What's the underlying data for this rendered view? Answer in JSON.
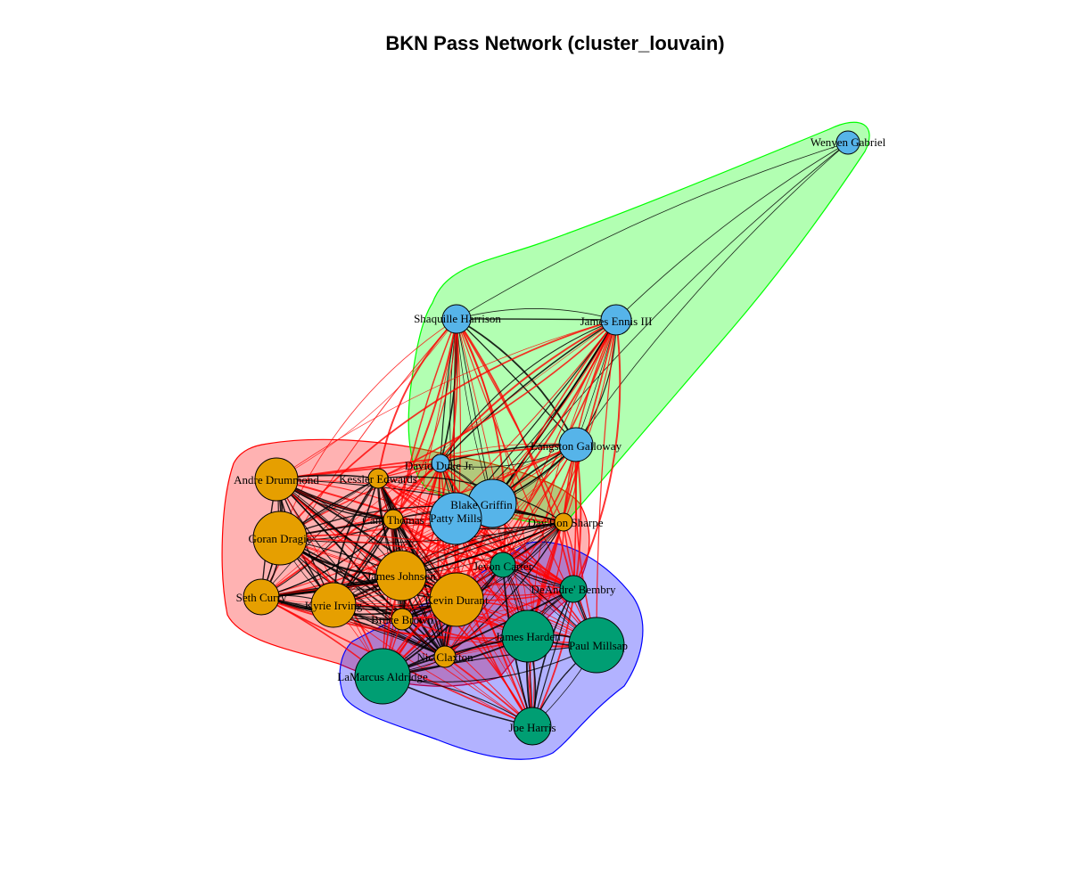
{
  "title": "BKN Pass Network (cluster_louvain)",
  "colors": {
    "community_orange": "#E69F00",
    "community_blue": "#56B4E9",
    "community_green": "#009E73",
    "hull_red": "#FF0000",
    "hull_green": "#00FF00",
    "hull_blue": "#0000FF",
    "edge_within": "#000000",
    "edge_between": "#FF0000"
  },
  "communities": [
    {
      "id": "orange",
      "fill": "#E69F00",
      "hull": "#FF0000",
      "members": [
        "Andre Drummond",
        "Kessler Edwards",
        "Cam Thomas",
        "Goran Dragic",
        "Seth Curry",
        "Kyrie Irving",
        "James Johnson",
        "Kevin Durant",
        "Bruce Brown",
        "Nic Claxton",
        "Day'Ron Sharpe"
      ]
    },
    {
      "id": "blue",
      "fill": "#56B4E9",
      "hull": "#00FF00",
      "members": [
        "Wenyen Gabriel",
        "Shaquille Harrison",
        "James Ennis III",
        "Langston Galloway",
        "David Duke Jr.",
        "Blake Griffin",
        "Patty Mills"
      ]
    },
    {
      "id": "green",
      "fill": "#009E73",
      "hull": "#0000FF",
      "members": [
        "Jevon Carter",
        "DeAndre' Bembry",
        "James Harden",
        "Paul Millsap",
        "LaMarcus Aldridge",
        "Joe Harris"
      ]
    }
  ],
  "nodes": [
    {
      "name": "Wenyen Gabriel",
      "group": "blue"
    },
    {
      "name": "Shaquille Harrison",
      "group": "blue"
    },
    {
      "name": "James Ennis III",
      "group": "blue"
    },
    {
      "name": "Langston Galloway",
      "group": "blue"
    },
    {
      "name": "David Duke Jr.",
      "group": "blue"
    },
    {
      "name": "Blake Griffin",
      "group": "blue"
    },
    {
      "name": "Patty Mills",
      "group": "blue"
    },
    {
      "name": "Andre Drummond",
      "group": "orange"
    },
    {
      "name": "Kessler Edwards",
      "group": "orange"
    },
    {
      "name": "Cam Thomas",
      "group": "orange"
    },
    {
      "name": "Goran Dragic",
      "group": "orange"
    },
    {
      "name": "Day'Ron Sharpe",
      "group": "orange"
    },
    {
      "name": "Seth Curry",
      "group": "orange"
    },
    {
      "name": "Kyrie Irving",
      "group": "orange"
    },
    {
      "name": "James Johnson",
      "group": "orange"
    },
    {
      "name": "Kevin Durant",
      "group": "orange"
    },
    {
      "name": "Bruce Brown",
      "group": "orange"
    },
    {
      "name": "Nic Claxton",
      "group": "orange"
    },
    {
      "name": "Jevon Carter",
      "group": "green"
    },
    {
      "name": "DeAndre' Bembry",
      "group": "green"
    },
    {
      "name": "James Harden",
      "group": "green"
    },
    {
      "name": "Paul Millsap",
      "group": "green"
    },
    {
      "name": "LaMarcus Aldridge",
      "group": "green"
    },
    {
      "name": "Joe Harris",
      "group": "green"
    }
  ]
}
